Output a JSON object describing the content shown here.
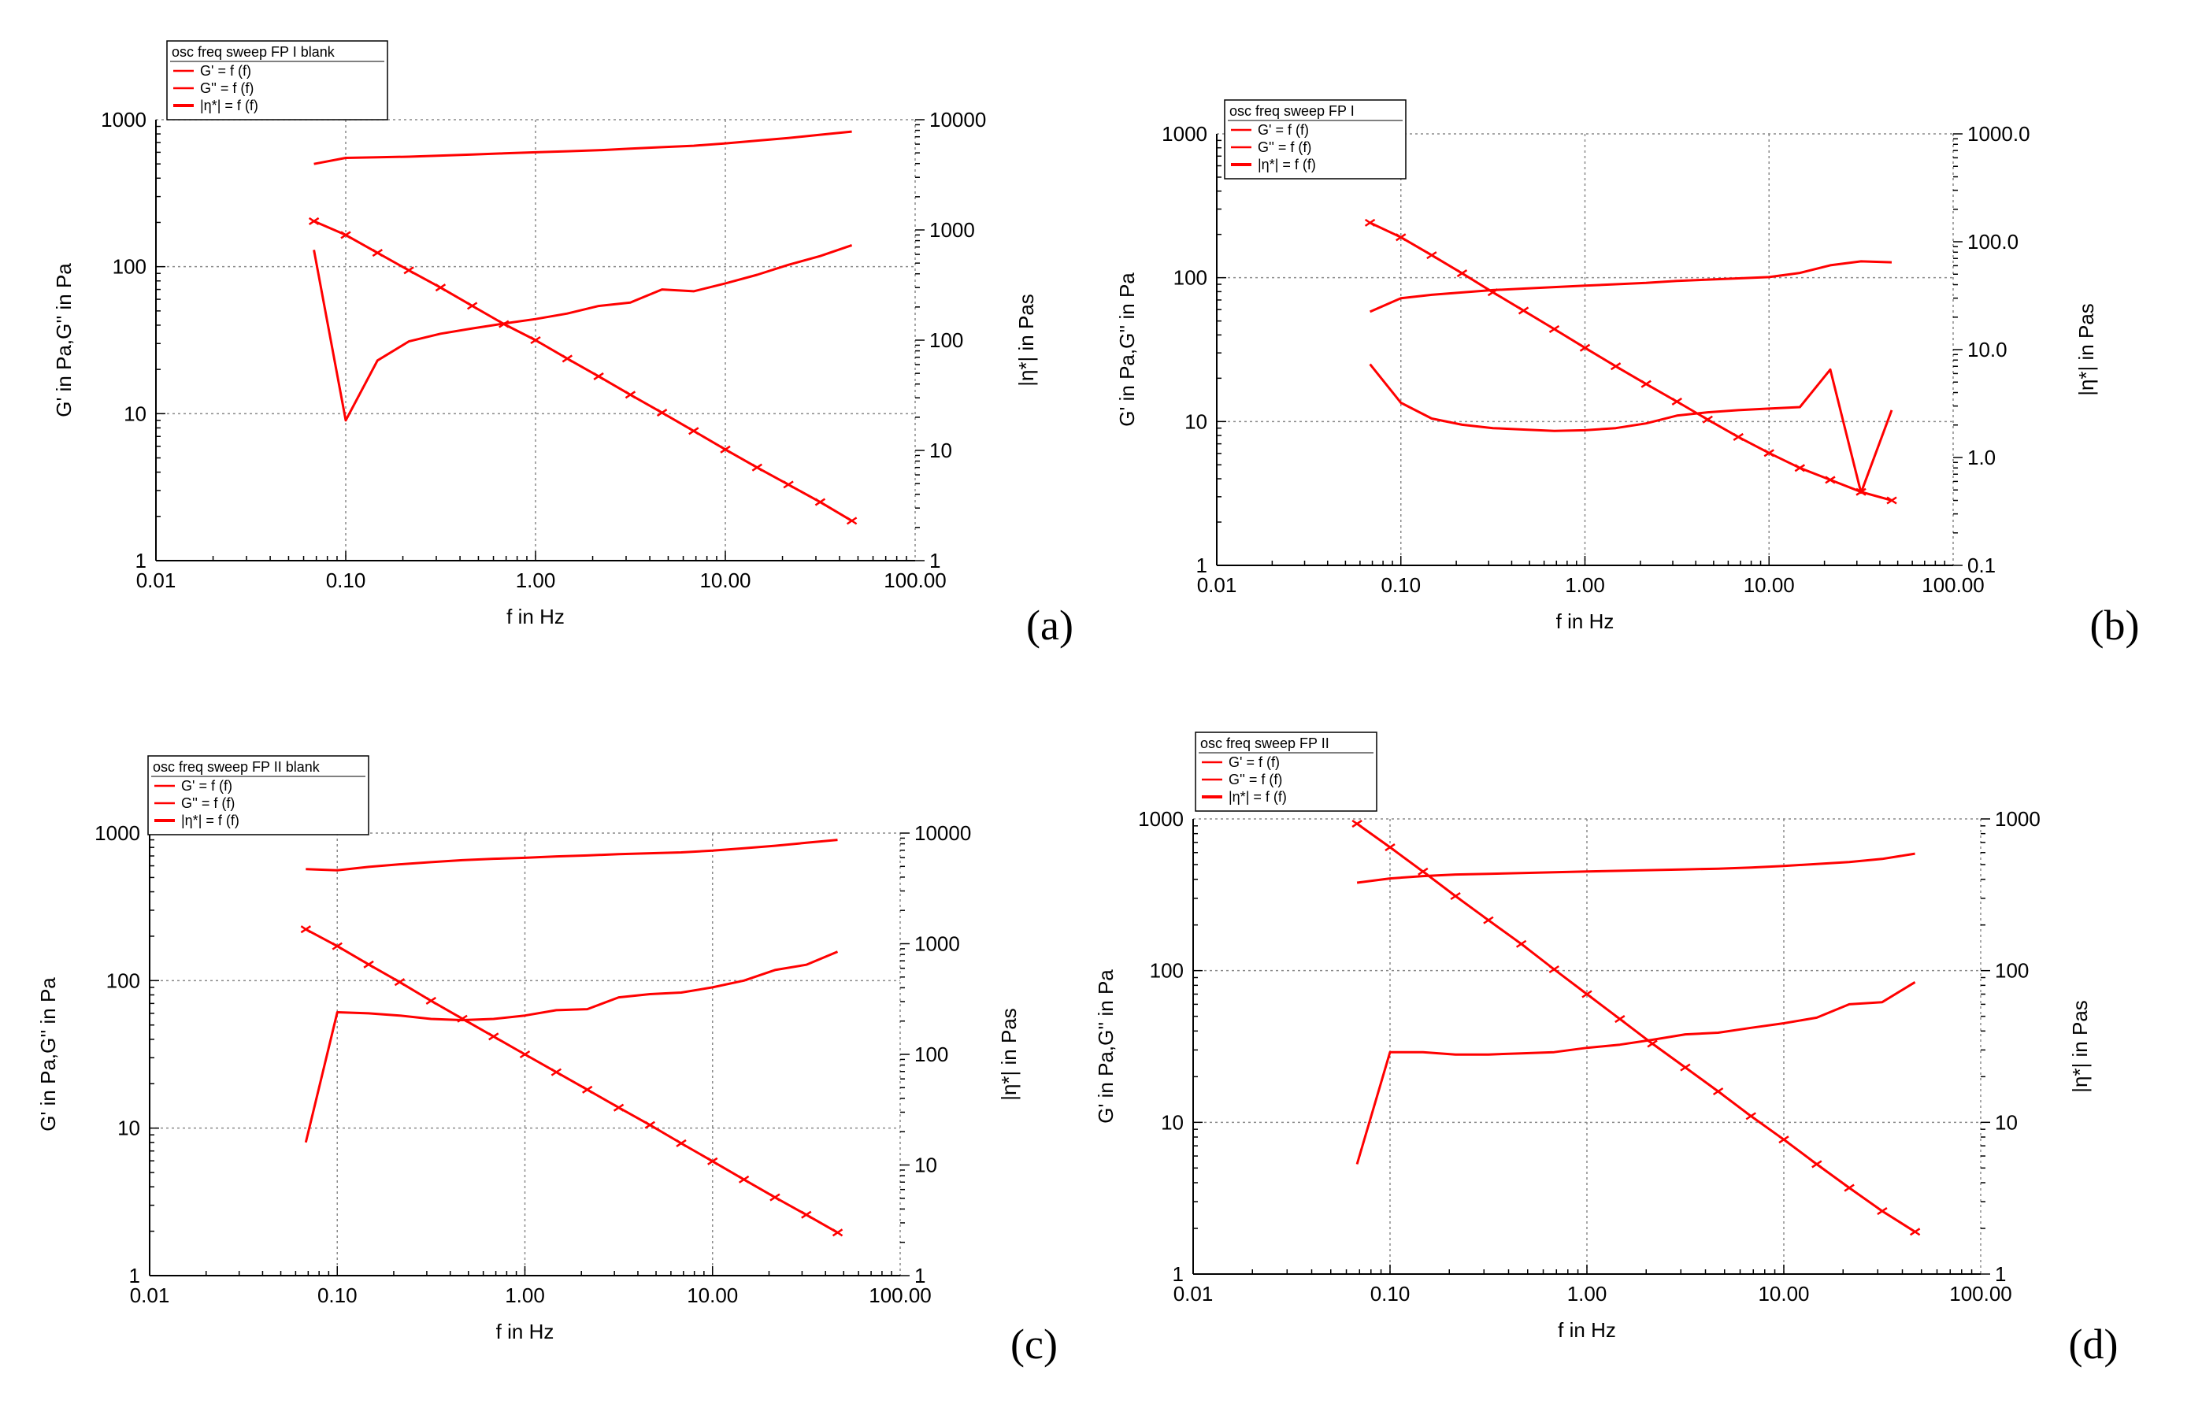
{
  "colors": {
    "series": "#ff0000",
    "grid": "#8a8a8a",
    "axis": "#000000"
  },
  "chart_data": [
    {
      "type": "line",
      "panel_label": "(a)",
      "legend_title": "osc freq sweep FP I blank",
      "legend": [
        "G' = f (f)",
        "G'' = f (f)",
        "|η*| = f (f)"
      ],
      "xlabel": "f in Hz",
      "ylabel": "G' in Pa,G'' in Pa",
      "y2label": "|η*| in Pas",
      "xlim": [
        0.01,
        100
      ],
      "ylim": [
        1,
        1000
      ],
      "y2lim": [
        1,
        10000
      ],
      "xticks": [
        "0.01",
        "0.10",
        "1.00",
        "10.00",
        "100.00"
      ],
      "yticks": [
        "1",
        "10",
        "100",
        "1000"
      ],
      "y2ticks": [
        "1",
        "10",
        "100",
        "1000",
        "10000"
      ],
      "series": [
        {
          "name": "G' = f (f)",
          "axis": "left",
          "x": [
            0.068,
            0.1,
            0.147,
            0.215,
            0.316,
            0.464,
            0.681,
            1.0,
            1.47,
            2.15,
            3.16,
            4.64,
            6.81,
            10,
            14.7,
            21.5,
            31.6,
            46.4
          ],
          "y": [
            500,
            550,
            555,
            560,
            570,
            580,
            590,
            600,
            610,
            620,
            635,
            650,
            665,
            690,
            720,
            750,
            790,
            830
          ]
        },
        {
          "name": "G'' = f (f)",
          "axis": "left",
          "x": [
            0.068,
            0.1,
            0.147,
            0.215,
            0.316,
            0.464,
            0.681,
            1.0,
            1.47,
            2.15,
            3.16,
            4.64,
            6.81,
            10,
            14.7,
            21.5,
            31.6,
            46.4
          ],
          "y": [
            130,
            9,
            23,
            31,
            35,
            38,
            41,
            44,
            48,
            54,
            57,
            70,
            68,
            77,
            88,
            103,
            118,
            140
          ]
        },
        {
          "name": "|η*| = f (f)",
          "axis": "right",
          "markers": true,
          "x": [
            0.068,
            0.1,
            0.147,
            0.215,
            0.316,
            0.464,
            0.681,
            1.0,
            1.47,
            2.15,
            3.16,
            4.64,
            6.81,
            10,
            14.7,
            21.5,
            31.6,
            46.4
          ],
          "y": [
            1200,
            900,
            620,
            430,
            300,
            205,
            140,
            100,
            68,
            47,
            32,
            22,
            15,
            10.2,
            7.0,
            4.9,
            3.4,
            2.3
          ]
        }
      ]
    },
    {
      "type": "line",
      "panel_label": "(b)",
      "legend_title": "osc freq sweep FP I",
      "legend": [
        "G' = f (f)",
        "G'' = f (f)",
        "|η*| = f (f)"
      ],
      "xlabel": "f in Hz",
      "ylabel": "G' in Pa,G'' in Pa",
      "y2label": "|η*| in Pas",
      "xlim": [
        0.01,
        100
      ],
      "ylim": [
        1,
        1000
      ],
      "y2lim": [
        0.1,
        1000
      ],
      "xticks": [
        "0.01",
        "0.10",
        "1.00",
        "10.00",
        "100.00"
      ],
      "yticks": [
        "1",
        "10",
        "100",
        "1000"
      ],
      "y2ticks": [
        "0.1",
        "1.0",
        "10.0",
        "100.0",
        "1000.0"
      ],
      "series": [
        {
          "name": "G' = f (f)",
          "axis": "left",
          "x": [
            0.068,
            0.1,
            0.147,
            0.215,
            0.316,
            0.464,
            0.681,
            1.0,
            1.47,
            2.15,
            3.16,
            4.64,
            6.81,
            10,
            14.7,
            21.5,
            31.6,
            46.4
          ],
          "y": [
            58,
            72,
            76,
            79,
            82,
            84,
            86,
            88,
            90,
            92,
            95,
            97,
            99,
            101,
            108,
            122,
            130,
            128
          ]
        },
        {
          "name": "G'' = f (f)",
          "axis": "left",
          "x": [
            0.068,
            0.1,
            0.147,
            0.215,
            0.316,
            0.464,
            0.681,
            1.0,
            1.47,
            2.15,
            3.16,
            4.64,
            6.81,
            10,
            14.7,
            21.5,
            31.6,
            46.4
          ],
          "y": [
            25,
            13.5,
            10.5,
            9.5,
            9.0,
            8.8,
            8.6,
            8.7,
            9.0,
            9.7,
            11,
            11.6,
            12,
            12.3,
            12.6,
            23,
            3.2,
            12
          ]
        },
        {
          "name": "|η*| = f (f)",
          "axis": "right",
          "markers": true,
          "x": [
            0.068,
            0.1,
            0.147,
            0.215,
            0.316,
            0.464,
            0.681,
            1.0,
            1.47,
            2.15,
            3.16,
            4.64,
            6.81,
            10,
            14.7,
            21.5,
            31.6,
            46.4
          ],
          "y": [
            150,
            110,
            75,
            51,
            34,
            23,
            15.5,
            10.4,
            7.0,
            4.8,
            3.3,
            2.25,
            1.55,
            1.1,
            0.8,
            0.62,
            0.48,
            0.4
          ]
        }
      ]
    },
    {
      "type": "line",
      "panel_label": "(c)",
      "legend_title": "osc freq sweep FP II blank",
      "legend": [
        "G' = f (f)",
        "G'' = f (f)",
        "|η*| = f (f)"
      ],
      "xlabel": "f in Hz",
      "ylabel": "G' in Pa,G'' in Pa",
      "y2label": "|η*| in Pas",
      "xlim": [
        0.01,
        100
      ],
      "ylim": [
        1,
        1000
      ],
      "y2lim": [
        1,
        10000
      ],
      "xticks": [
        "0.01",
        "0.10",
        "1.00",
        "10.00",
        "100.00"
      ],
      "yticks": [
        "1",
        "10",
        "100",
        "1000"
      ],
      "y2ticks": [
        "1",
        "10",
        "100",
        "1000",
        "10000"
      ],
      "series": [
        {
          "name": "G' = f (f)",
          "axis": "left",
          "x": [
            0.068,
            0.1,
            0.147,
            0.215,
            0.316,
            0.464,
            0.681,
            1.0,
            1.47,
            2.15,
            3.16,
            4.64,
            6.81,
            10,
            14.7,
            21.5,
            31.6,
            46.4
          ],
          "y": [
            570,
            560,
            590,
            615,
            635,
            655,
            670,
            680,
            695,
            705,
            720,
            730,
            740,
            760,
            790,
            820,
            860,
            900
          ]
        },
        {
          "name": "G'' = f (f)",
          "axis": "left",
          "x": [
            0.068,
            0.1,
            0.147,
            0.215,
            0.316,
            0.464,
            0.681,
            1.0,
            1.47,
            2.15,
            3.16,
            4.64,
            6.81,
            10,
            14.7,
            21.5,
            31.6,
            46.4
          ],
          "y": [
            8,
            61,
            60,
            58,
            55,
            54,
            55,
            58,
            63,
            64,
            77,
            81,
            83,
            90,
            100,
            118,
            128,
            157
          ]
        },
        {
          "name": "|η*| = f (f)",
          "axis": "right",
          "markers": true,
          "x": [
            0.068,
            0.1,
            0.147,
            0.215,
            0.316,
            0.464,
            0.681,
            1.0,
            1.47,
            2.15,
            3.16,
            4.64,
            6.81,
            10,
            14.7,
            21.5,
            31.6,
            46.4
          ],
          "y": [
            1350,
            950,
            650,
            450,
            305,
            210,
            145,
            100,
            69,
            48,
            33,
            23,
            15.7,
            10.8,
            7.4,
            5.1,
            3.55,
            2.45
          ]
        }
      ]
    },
    {
      "type": "line",
      "panel_label": "(d)",
      "legend_title": "osc freq sweep FP II",
      "legend": [
        "G' = f (f)",
        "G'' = f (f)",
        "|η*| = f (f)"
      ],
      "xlabel": "f in Hz",
      "ylabel": "G' in Pa,G'' in Pa",
      "y2label": "|η*| in Pas",
      "xlim": [
        0.01,
        100
      ],
      "ylim": [
        1,
        1000
      ],
      "y2lim": [
        1,
        1000
      ],
      "xticks": [
        "0.01",
        "0.10",
        "1.00",
        "10.00",
        "100.00"
      ],
      "yticks": [
        "1",
        "10",
        "100",
        "1000"
      ],
      "y2ticks": [
        "1",
        "10",
        "100",
        "1000"
      ],
      "series": [
        {
          "name": "G' = f (f)",
          "axis": "left",
          "x": [
            0.068,
            0.1,
            0.147,
            0.215,
            0.316,
            0.464,
            0.681,
            1.0,
            1.47,
            2.15,
            3.16,
            4.64,
            6.81,
            10,
            14.7,
            21.5,
            31.6,
            46.4
          ],
          "y": [
            380,
            405,
            420,
            430,
            435,
            440,
            445,
            450,
            455,
            460,
            465,
            470,
            478,
            490,
            505,
            520,
            545,
            590
          ]
        },
        {
          "name": "G'' = f (f)",
          "axis": "left",
          "x": [
            0.068,
            0.1,
            0.147,
            0.215,
            0.316,
            0.464,
            0.681,
            1.0,
            1.47,
            2.15,
            3.16,
            4.64,
            6.81,
            10,
            14.7,
            21.5,
            31.6,
            46.4
          ],
          "y": [
            5.3,
            29,
            29,
            28,
            28,
            28.5,
            29,
            31,
            32.5,
            35,
            38,
            39,
            42,
            45,
            49,
            60,
            62,
            84
          ]
        },
        {
          "name": "|η*| = f (f)",
          "axis": "right",
          "markers": true,
          "x": [
            0.068,
            0.1,
            0.147,
            0.215,
            0.316,
            0.464,
            0.681,
            1.0,
            1.47,
            2.15,
            3.16,
            4.64,
            6.81,
            10,
            14.7,
            21.5,
            31.6,
            46.4
          ],
          "y": [
            930,
            650,
            450,
            310,
            215,
            150,
            102,
            70,
            48,
            33,
            23,
            16,
            11,
            7.7,
            5.3,
            3.7,
            2.6,
            1.9
          ]
        }
      ]
    }
  ]
}
